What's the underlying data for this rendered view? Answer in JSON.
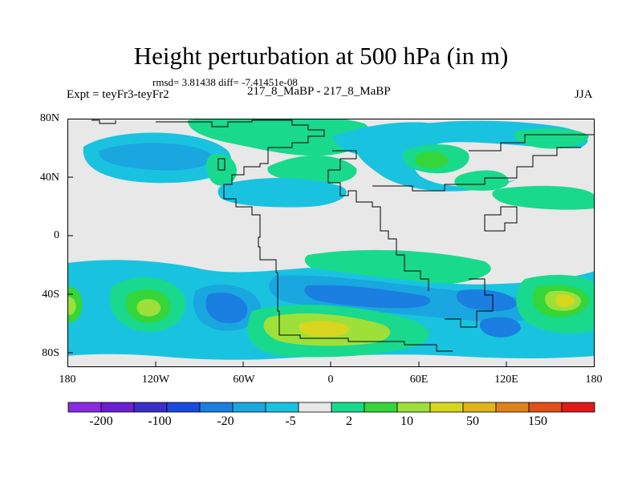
{
  "title": "Height perturbation at 500 hPa (in m)",
  "stats_text": "rmsd= 3.81438 diff= -7.41451e-08",
  "experiment": "Expt = teyFr3-teyFr2",
  "center_label": "217_8_MaBP - 217_8_MaBP",
  "season": "JJA",
  "y_ticks": [
    "80N",
    "40N",
    "0",
    "40S",
    "80S"
  ],
  "x_ticks": [
    "180",
    "120W",
    "60W",
    "0",
    "60E",
    "120E",
    "180"
  ],
  "colorbar": {
    "colors": [
      "#8a2be2",
      "#6a1fd0",
      "#3b2fc9",
      "#1a49e0",
      "#1a7fe0",
      "#1aa6df",
      "#19c3e0",
      "#e8e8e8",
      "#19d98c",
      "#35d63a",
      "#9ee03a",
      "#d9d61e",
      "#e0b51a",
      "#e0821a",
      "#e0501a",
      "#e01a1a"
    ],
    "labels": [
      "-200",
      "-100",
      "-20",
      "-5",
      "2",
      "10",
      "50",
      "150"
    ]
  },
  "map_colors": {
    "background": "#e8e8e8",
    "light_blue": "#19c3e0",
    "mid_blue": "#1aa6df",
    "blue": "#1a7fe0",
    "deep_blue": "#1a49e0",
    "light_green": "#19d98c",
    "green": "#35d63a",
    "yellow_green": "#9ee03a",
    "yellow": "#d9d61e"
  }
}
